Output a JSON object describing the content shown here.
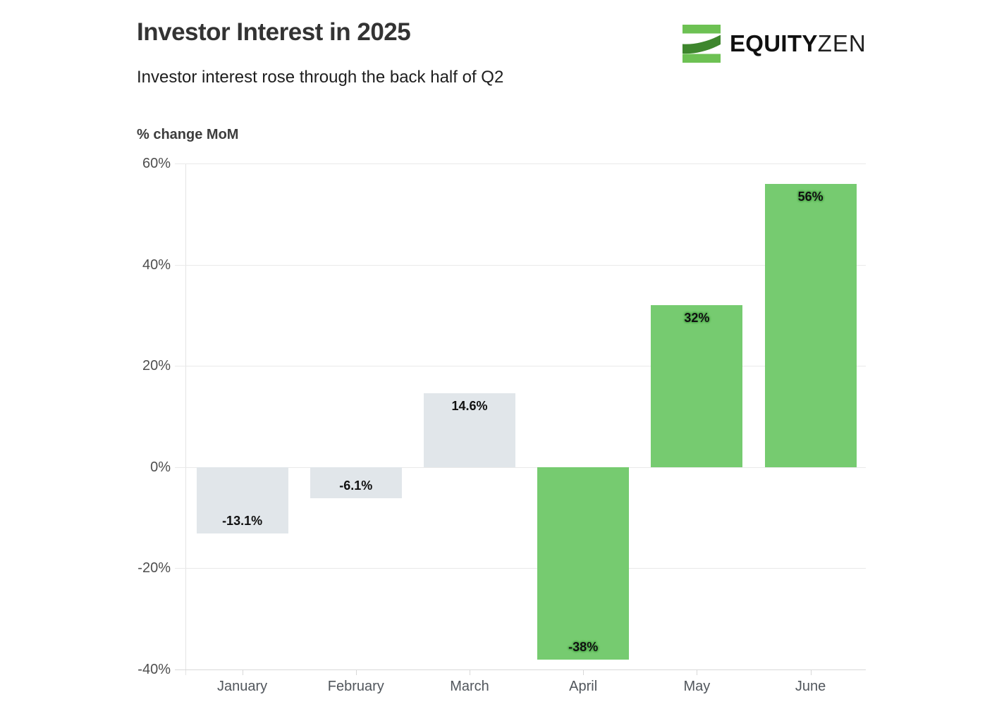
{
  "header": {
    "title": "Investor Interest in 2025",
    "subtitle": "Investor interest rose through the back half of Q2"
  },
  "logo": {
    "name": "EquityZen",
    "brand_bold": "EQUITY",
    "brand_light": "ZEN",
    "icon": "equityzen-z-stripes-icon",
    "icon_light_green": "#6dc153",
    "icon_dark_green": "#3e862d"
  },
  "colors": {
    "bar_neutral_gray": "#e1e6ea",
    "bar_green": "#76cb70",
    "green_label_halo": "#58b155",
    "gridline": "#e9e9e9"
  },
  "chart_data": {
    "type": "bar",
    "title": "Investor Interest in 2025",
    "subtitle": "Investor interest rose through the back half of Q2",
    "ylabel": "% change MoM",
    "xlabel": "",
    "categories": [
      "January",
      "February",
      "March",
      "April",
      "May",
      "June"
    ],
    "values": [
      -13.1,
      -6.1,
      14.6,
      -38,
      32,
      56
    ],
    "value_labels": [
      "-13.1%",
      "-6.1%",
      "14.6%",
      "-38%",
      "32%",
      "56%"
    ],
    "bar_colors": [
      "#e1e6ea",
      "#e1e6ea",
      "#e1e6ea",
      "#76cb70",
      "#76cb70",
      "#76cb70"
    ],
    "label_halo_colors": [
      null,
      null,
      null,
      "#58b155",
      "#58b155",
      "#58b155"
    ],
    "ylim": [
      -40,
      60
    ],
    "ytick_values": [
      60,
      40,
      20,
      0,
      -20,
      -40
    ],
    "ytick_labels": [
      "60%",
      "40%",
      "20%",
      "0%",
      "-20%",
      "-40%"
    ],
    "grid": "horizontal",
    "legend": "none"
  }
}
